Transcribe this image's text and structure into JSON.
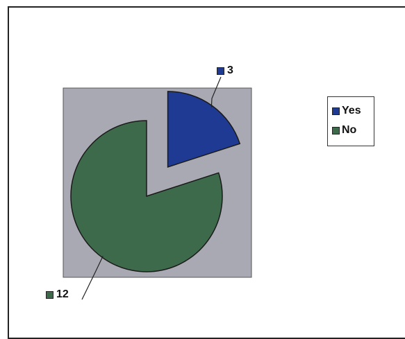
{
  "chart_data": {
    "type": "pie",
    "title": "",
    "categories": [
      "Yes",
      "No"
    ],
    "values": [
      3,
      12
    ],
    "colors": [
      "#1f3a93",
      "#3d6a4a"
    ],
    "exploded": [
      "Yes"
    ],
    "data_labels": [
      "3",
      "12"
    ],
    "legend": {
      "placement": "right",
      "entries": [
        "Yes",
        "No"
      ]
    },
    "plot_background": "#a9a9b3",
    "grid": false
  }
}
